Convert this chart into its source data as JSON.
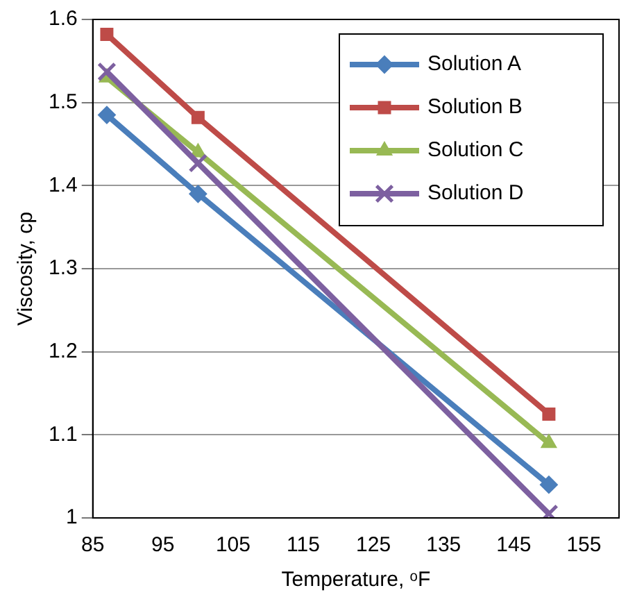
{
  "chart_data": {
    "type": "line",
    "xlabel": "Temperature, ᵒF",
    "ylabel": "Viscosity, cp",
    "x": [
      87,
      100,
      150
    ],
    "series": [
      {
        "name": "Solution A",
        "color": "#4a7ebb",
        "marker": "diamond",
        "values": [
          1.485,
          1.39,
          1.04
        ]
      },
      {
        "name": "Solution B",
        "color": "#be4b48",
        "marker": "square",
        "values": [
          1.582,
          1.482,
          1.125
        ]
      },
      {
        "name": "Solution C",
        "color": "#98b954",
        "marker": "triangle",
        "values": [
          1.53,
          1.44,
          1.09
        ]
      },
      {
        "name": "Solution D",
        "color": "#7d60a0",
        "marker": "cross",
        "values": [
          1.537,
          1.427,
          1.005
        ]
      }
    ],
    "xlim": [
      85,
      160
    ],
    "xticks": [
      85,
      95,
      105,
      115,
      125,
      135,
      145,
      155
    ],
    "ylim": [
      1,
      1.6
    ],
    "yticks": [
      1,
      1.1,
      1.2,
      1.3,
      1.4,
      1.5,
      1.6
    ],
    "grid": "y",
    "legend": "top right",
    "line_style": "solid"
  }
}
